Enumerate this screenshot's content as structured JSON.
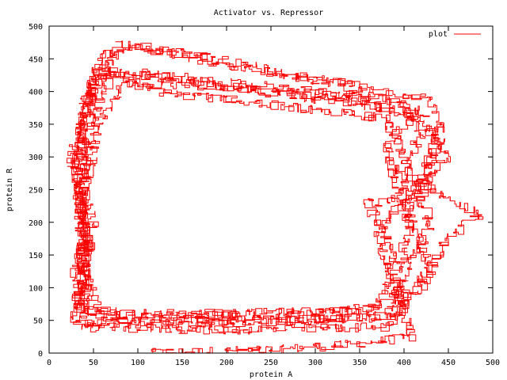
{
  "chart_data": {
    "type": "line",
    "title": "Activator vs. Repressor",
    "xlabel": "protein A",
    "ylabel": "protein R",
    "xlim": [
      0,
      500
    ],
    "ylim": [
      0,
      500
    ],
    "xticks": [
      0,
      50,
      100,
      150,
      200,
      250,
      300,
      350,
      400,
      450,
      500
    ],
    "yticks": [
      0,
      50,
      100,
      150,
      200,
      250,
      300,
      350,
      400,
      450,
      500
    ],
    "grid": false,
    "legend": {
      "position": "top-right",
      "entries": [
        "plot"
      ]
    },
    "series": [
      {
        "name": "plot",
        "color": "#ff0000",
        "points": [
          [
            110,
            0
          ],
          [
            170,
            2
          ],
          [
            250,
            5
          ],
          [
            330,
            12
          ],
          [
            380,
            20
          ],
          [
            410,
            25
          ],
          [
            400,
            60
          ],
          [
            390,
            120
          ],
          [
            410,
            200
          ],
          [
            395,
            280
          ],
          [
            420,
            340
          ],
          [
            400,
            380
          ],
          [
            300,
            400
          ],
          [
            200,
            415
          ],
          [
            100,
            430
          ],
          [
            50,
            420
          ],
          [
            40,
            350
          ],
          [
            35,
            250
          ],
          [
            45,
            150
          ],
          [
            40,
            80
          ],
          [
            35,
            45
          ],
          [
            150,
            45
          ],
          [
            300,
            50
          ],
          [
            380,
            60
          ],
          [
            400,
            120
          ],
          [
            430,
            200
          ],
          [
            400,
            300
          ],
          [
            380,
            360
          ],
          [
            250,
            380
          ],
          [
            120,
            400
          ],
          [
            60,
            440
          ],
          [
            45,
            380
          ],
          [
            30,
            290
          ],
          [
            50,
            200
          ],
          [
            30,
            120
          ],
          [
            40,
            60
          ],
          [
            200,
            60
          ],
          [
            350,
            65
          ],
          [
            420,
            100
          ],
          [
            450,
            180
          ],
          [
            485,
            212
          ],
          [
            420,
            260
          ],
          [
            440,
            350
          ],
          [
            430,
            390
          ],
          [
            300,
            420
          ],
          [
            150,
            460
          ],
          [
            80,
            472
          ],
          [
            50,
            400
          ],
          [
            25,
            300
          ],
          [
            40,
            200
          ],
          [
            35,
            100
          ],
          [
            30,
            40
          ],
          [
            200,
            35
          ],
          [
            380,
            40
          ],
          [
            400,
            80
          ],
          [
            370,
            180
          ],
          [
            410,
            250
          ],
          [
            450,
            300
          ],
          [
            420,
            370
          ],
          [
            330,
            410
          ],
          [
            200,
            440
          ],
          [
            100,
            470
          ],
          [
            60,
            455
          ],
          [
            40,
            380
          ],
          [
            30,
            260
          ],
          [
            45,
            160
          ],
          [
            30,
            70
          ],
          [
            120,
            55
          ],
          [
            280,
            58
          ],
          [
            370,
            70
          ],
          [
            390,
            150
          ],
          [
            360,
            230
          ],
          [
            420,
            240
          ],
          [
            440,
            330
          ],
          [
            400,
            370
          ],
          [
            270,
            395
          ],
          [
            130,
            420
          ],
          [
            70,
            430
          ],
          [
            45,
            330
          ],
          [
            35,
            220
          ],
          [
            40,
            120
          ],
          [
            60,
            50
          ],
          [
            250,
            50
          ],
          [
            390,
            55
          ],
          [
            430,
            130
          ],
          [
            400,
            220
          ],
          [
            380,
            320
          ],
          [
            410,
            360
          ],
          [
            350,
            385
          ],
          [
            220,
            405
          ],
          [
            90,
            415
          ],
          [
            55,
            350
          ],
          [
            40,
            240
          ],
          [
            35,
            140
          ],
          [
            40,
            95
          ]
        ]
      }
    ]
  }
}
